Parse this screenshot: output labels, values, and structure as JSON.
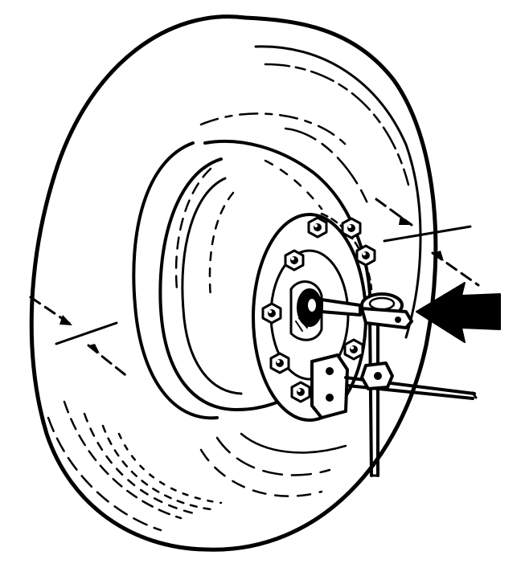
{
  "figure": {
    "subject": "wheel-hub-runout-measurement",
    "colors": {
      "ink": "#000000",
      "paper": "#ffffff"
    },
    "icons": [
      "wheel-tire",
      "wheel-rim",
      "hub",
      "lug-nut",
      "dial-indicator",
      "pointer-arrow"
    ]
  }
}
